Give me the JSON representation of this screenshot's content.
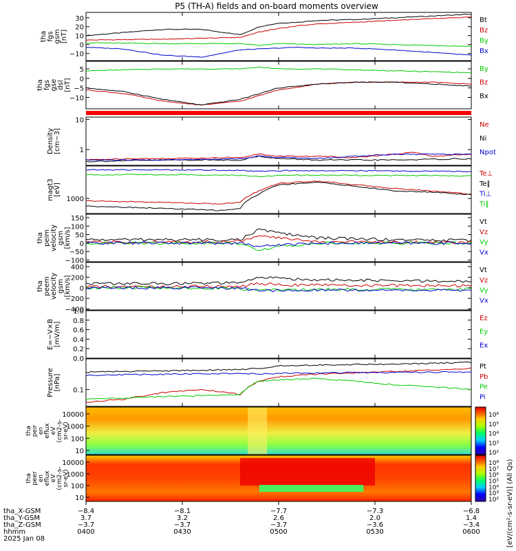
{
  "chart_data": {
    "title": "P5 (TH-A) fields and on-board moments overview",
    "type": "line",
    "panels": [
      {
        "id": "fgs_gsm",
        "ylabel": [
          "tha",
          "fgs",
          "gsm",
          "[nT]"
        ],
        "yticks": [
          {
            "v": 30,
            "label": "30"
          },
          {
            "v": 20,
            "label": "20"
          },
          {
            "v": 10,
            "label": "10"
          },
          {
            "v": 0,
            "label": "0"
          },
          {
            "v": -10,
            "label": "−10"
          }
        ],
        "ylim": [
          -18,
          36
        ],
        "log": false,
        "series": [
          {
            "name": "Bt",
            "color": "#000000",
            "x": [
              0.0,
              0.2,
              0.3,
              0.4,
              0.45,
              0.5,
              0.55,
              0.6,
              0.7,
              0.8,
              0.9,
              1.0
            ],
            "y": [
              10,
              17,
              17,
              11,
              20,
              24,
              25,
              27,
              28,
              30,
              32,
              34
            ]
          },
          {
            "name": "Bz",
            "color": "#cc0000",
            "x": [
              0.0,
              0.2,
              0.4,
              0.45,
              0.5,
              0.55,
              0.6,
              0.7,
              0.8,
              0.9,
              1.0
            ],
            "y": [
              5,
              6,
              8,
              14,
              18,
              21,
              23,
              25,
              27,
              29,
              31
            ]
          },
          {
            "name": "By",
            "color": "#00cc00",
            "x": [
              0.0,
              0.2,
              0.4,
              0.45,
              0.5,
              0.6,
              0.7,
              0.8,
              0.9,
              1.0
            ],
            "y": [
              2,
              1,
              1,
              -1,
              1,
              0,
              1,
              0,
              -1,
              -2
            ]
          },
          {
            "name": "Bx",
            "color": "#0000cc",
            "x": [
              0.0,
              0.1,
              0.2,
              0.3,
              0.4,
              0.45,
              0.5,
              0.55,
              0.6,
              0.7,
              0.8,
              0.9,
              1.0
            ],
            "y": [
              -3,
              -5,
              -12,
              -14,
              -6,
              -5,
              -4,
              -3,
              -4,
              -4,
              -6,
              -9,
              -12
            ]
          }
        ]
      },
      {
        "id": "fgs_dsl",
        "ylabel": [
          "tha",
          "fgs",
          "gse",
          "dsl",
          "[nT]"
        ],
        "yticks": [
          {
            "v": 5,
            "label": "5"
          },
          {
            "v": 0,
            "label": "0"
          },
          {
            "v": -5,
            "label": "−5"
          },
          {
            "v": -10,
            "label": "−10"
          }
        ],
        "ylim": [
          -16,
          9
        ],
        "log": false,
        "series": [
          {
            "name": "By",
            "color": "#00cc00",
            "x": [
              0.0,
              0.2,
              0.4,
              0.45,
              0.5,
              0.6,
              0.8,
              1.0
            ],
            "y": [
              4,
              5,
              5,
              6,
              5,
              5,
              4,
              3
            ]
          },
          {
            "name": "Bz",
            "color": "#cc0000",
            "x": [
              0.0,
              0.1,
              0.2,
              0.3,
              0.4,
              0.45,
              0.5,
              0.6,
              0.7,
              0.8,
              0.9,
              1.0
            ],
            "y": [
              -6,
              -8,
              -12,
              -14,
              -12,
              -9,
              -6,
              -3,
              -2,
              -2,
              -2,
              -3
            ]
          },
          {
            "name": "Bx",
            "color": "#000000",
            "x": [
              0.0,
              0.1,
              0.2,
              0.3,
              0.4,
              0.45,
              0.5,
              0.6,
              0.7,
              0.8,
              0.9,
              1.0
            ],
            "y": [
              -5,
              -7,
              -11,
              -14,
              -11,
              -8,
              -5,
              -3,
              -2,
              -2,
              -3,
              -4
            ]
          }
        ]
      },
      {
        "id": "density",
        "ylabel": [
          "Density",
          "[cm−3]"
        ],
        "yticks": [
          {
            "v": 10,
            "label": "10"
          },
          {
            "v": 1,
            "label": "1"
          }
        ],
        "ylim": [
          0.3,
          12
        ],
        "log": true,
        "series": [
          {
            "name": "Ne",
            "color": "#cc0000",
            "x": [
              0.0,
              0.1,
              0.2,
              0.4,
              0.45,
              0.5,
              0.6,
              0.7,
              0.8,
              0.85,
              0.9,
              1.0
            ],
            "y": [
              0.45,
              0.5,
              0.5,
              0.55,
              0.7,
              0.6,
              0.6,
              0.55,
              0.7,
              0.8,
              0.6,
              0.7
            ]
          },
          {
            "name": "Ni",
            "color": "#000000",
            "x": [
              0.0,
              0.2,
              0.4,
              0.45,
              0.5,
              0.6,
              0.8,
              1.0
            ],
            "y": [
              0.4,
              0.45,
              0.45,
              0.6,
              0.5,
              0.45,
              0.45,
              0.5
            ]
          },
          {
            "name": "Npot",
            "color": "#0000cc",
            "x": [
              0.0,
              0.2,
              0.4,
              0.45,
              0.5,
              0.6,
              0.8,
              0.9,
              1.0
            ],
            "y": [
              0.45,
              0.45,
              0.5,
              0.6,
              0.55,
              0.5,
              0.7,
              0.7,
              0.7
            ]
          }
        ]
      },
      {
        "id": "temperature",
        "ylabel": [
          "magt3",
          "[eV]"
        ],
        "yticks": [
          {
            "v": 1000,
            "label": "1000"
          }
        ],
        "ylim": [
          250,
          20000
        ],
        "log": true,
        "series": [
          {
            "name": "Te⊥",
            "color": "#cc0000",
            "x": [
              0.0,
              0.2,
              0.35,
              0.4,
              0.45,
              0.5,
              0.6,
              0.7,
              0.8,
              0.9,
              1.0
            ],
            "y": [
              800,
              700,
              600,
              700,
              2000,
              4000,
              5000,
              3500,
              2500,
              2000,
              1500
            ]
          },
          {
            "name": "Te∥",
            "color": "#000000",
            "x": [
              0.0,
              0.2,
              0.35,
              0.4,
              0.45,
              0.5,
              0.6,
              0.7,
              0.8,
              0.9,
              1.0
            ],
            "y": [
              500,
              400,
              330,
              400,
              1500,
              3500,
              4500,
              3000,
              2000,
              1800,
              1400
            ]
          },
          {
            "name": "Ti⊥",
            "color": "#0000cc",
            "x": [
              0.0,
              0.2,
              0.4,
              0.45,
              0.5,
              0.7,
              1.0
            ],
            "y": [
              14000,
              14000,
              13500,
              12000,
              13000,
              13000,
              12000
            ]
          },
          {
            "name": "Ti∥",
            "color": "#00cc00",
            "x": [
              0.0,
              0.2,
              0.4,
              0.45,
              0.5,
              0.7,
              1.0
            ],
            "y": [
              9000,
              9000,
              8500,
              7500,
              8500,
              8500,
              8000
            ]
          }
        ]
      },
      {
        "id": "peim_velocity",
        "ylabel": [
          "tha",
          "peim",
          "velocity",
          "gsm",
          "[km/s]"
        ],
        "yticks": [
          {
            "v": 150,
            "label": "150"
          },
          {
            "v": 100,
            "label": "100"
          },
          {
            "v": 50,
            "label": "50"
          },
          {
            "v": 0,
            "label": "0"
          },
          {
            "v": -50,
            "label": "−50"
          },
          {
            "v": -100,
            "label": "−100"
          }
        ],
        "ylim": [
          -110,
          170
        ],
        "log": false,
        "series": [
          {
            "name": "Vt",
            "color": "#000000",
            "x": [
              0.0,
              0.2,
              0.4,
              0.45,
              0.5,
              0.6,
              0.8,
              1.0
            ],
            "y": [
              20,
              20,
              20,
              80,
              60,
              30,
              20,
              15
            ]
          },
          {
            "name": "Vz",
            "color": "#cc0000",
            "x": [
              0.0,
              0.2,
              0.4,
              0.45,
              0.5,
              0.6,
              0.8,
              1.0
            ],
            "y": [
              5,
              5,
              10,
              40,
              30,
              10,
              5,
              5
            ]
          },
          {
            "name": "Vy",
            "color": "#00cc00",
            "x": [
              0.0,
              0.2,
              0.4,
              0.45,
              0.5,
              0.6,
              0.8,
              1.0
            ],
            "y": [
              0,
              0,
              0,
              -40,
              -20,
              0,
              0,
              0
            ]
          },
          {
            "name": "Vx",
            "color": "#0000cc",
            "x": [
              0.0,
              0.2,
              0.4,
              0.45,
              0.5,
              0.6,
              0.8,
              1.0
            ],
            "y": [
              0,
              0,
              0,
              -20,
              -10,
              0,
              0,
              0
            ]
          }
        ]
      },
      {
        "id": "peem_velocity",
        "ylabel": [
          "tha",
          "peem",
          "velocity",
          "gsm",
          "[km/s]"
        ],
        "yticks": [
          {
            "v": 400,
            "label": "400"
          },
          {
            "v": 200,
            "label": "200"
          },
          {
            "v": 0,
            "label": "0"
          },
          {
            "v": -200,
            "label": "−200"
          },
          {
            "v": -400,
            "label": "−400"
          }
        ],
        "ylim": [
          -420,
          480
        ],
        "log": false,
        "series": [
          {
            "name": "Vt",
            "color": "#000000",
            "x": [
              0.0,
              0.2,
              0.4,
              0.45,
              0.5,
              0.6,
              0.8,
              1.0
            ],
            "y": [
              80,
              80,
              90,
              200,
              180,
              150,
              130,
              120
            ]
          },
          {
            "name": "Vz",
            "color": "#cc0000",
            "x": [
              0.0,
              0.2,
              0.4,
              0.45,
              0.5,
              0.6,
              0.8,
              1.0
            ],
            "y": [
              20,
              20,
              30,
              80,
              60,
              50,
              40,
              40
            ]
          },
          {
            "name": "Vy",
            "color": "#00cc00",
            "x": [
              0.0,
              0.2,
              0.4,
              0.45,
              0.5,
              0.6,
              0.8,
              1.0
            ],
            "y": [
              0,
              0,
              -10,
              -60,
              -40,
              -30,
              -30,
              -30
            ]
          },
          {
            "name": "Vx",
            "color": "#0000cc",
            "x": [
              0.0,
              0.2,
              0.4,
              0.45,
              0.5,
              0.6,
              0.8,
              1.0
            ],
            "y": [
              0,
              0,
              -10,
              -60,
              -50,
              -40,
              -50,
              -50
            ]
          }
        ]
      },
      {
        "id": "efield",
        "ylabel": [
          "E=−V×B",
          "[mV/m]"
        ],
        "yticks": [
          {
            "v": 1.0,
            "label": "1.0"
          },
          {
            "v": 0.8,
            "label": "0.8"
          },
          {
            "v": 0.6,
            "label": "0.6"
          },
          {
            "v": 0.4,
            "label": "0.4"
          },
          {
            "v": 0.2,
            "label": "0.2"
          },
          {
            "v": 0.0,
            "label": "0.0"
          }
        ],
        "ylim": [
          0.0,
          1.0
        ],
        "log": false,
        "series": [
          {
            "name": "Ez",
            "color": "#cc0000",
            "x": [],
            "y": []
          },
          {
            "name": "Ey",
            "color": "#00cc00",
            "x": [],
            "y": []
          },
          {
            "name": "Ex",
            "color": "#0000cc",
            "x": [],
            "y": []
          }
        ]
      },
      {
        "id": "pressure",
        "ylabel": [
          "Pressure",
          "[nPa]"
        ],
        "yticks": [
          {
            "v": 0.1,
            "label": "0.1"
          }
        ],
        "ylim": [
          0.03,
          0.9
        ],
        "log": true,
        "series": [
          {
            "name": "Pt",
            "color": "#000000",
            "x": [
              0.0,
              0.2,
              0.4,
              0.45,
              0.5,
              0.6,
              0.7,
              0.8,
              0.9,
              1.0
            ],
            "y": [
              0.35,
              0.38,
              0.42,
              0.45,
              0.55,
              0.58,
              0.6,
              0.62,
              0.65,
              0.7
            ]
          },
          {
            "name": "Pb",
            "color": "#cc0000",
            "x": [
              0.0,
              0.1,
              0.2,
              0.3,
              0.4,
              0.45,
              0.5,
              0.6,
              0.7,
              0.8,
              0.9,
              1.0
            ],
            "y": [
              0.04,
              0.05,
              0.08,
              0.1,
              0.07,
              0.18,
              0.25,
              0.3,
              0.33,
              0.36,
              0.4,
              0.45
            ]
          },
          {
            "name": "Pe",
            "color": "#00cc00",
            "x": [
              0.0,
              0.2,
              0.4,
              0.45,
              0.5,
              0.6,
              0.7,
              0.8,
              0.9,
              1.0
            ],
            "y": [
              0.05,
              0.06,
              0.07,
              0.18,
              0.2,
              0.22,
              0.18,
              0.14,
              0.12,
              0.1
            ]
          },
          {
            "name": "Pi",
            "color": "#0000cc",
            "x": [
              0.0,
              0.2,
              0.4,
              0.45,
              0.5,
              0.6,
              0.8,
              1.0
            ],
            "y": [
              0.28,
              0.3,
              0.32,
              0.3,
              0.32,
              0.33,
              0.34,
              0.35
            ]
          }
        ]
      }
    ],
    "spectrograms": [
      {
        "id": "peir",
        "ylabel": [
          "tha",
          "peir",
          "en",
          "eflux",
          "eV",
          "(cm2-s-",
          "sr-eV)"
        ],
        "yticks": [
          "10000",
          "1000",
          "100",
          "10"
        ],
        "colorbar_ticks": [
          "10⁶",
          "10⁵",
          "10⁴",
          "10³",
          "10²"
        ]
      },
      {
        "id": "peer",
        "ylabel": [
          "tha",
          "peer",
          "en",
          "eflux",
          "eV",
          "(cm2-s-",
          "sr-eV)"
        ],
        "yticks": [
          "10000",
          "1000",
          "100",
          "10"
        ],
        "colorbar_ticks": [
          "10⁸",
          "10⁷",
          "10⁶",
          "10⁵",
          "10⁴",
          "10³",
          "10²"
        ]
      }
    ],
    "colorbar_label": "[eV/(cm²-s-sr-eV)] (All Qs)",
    "xaxis": {
      "rows": [
        "tha_X-GSM",
        "tha_Y-GSM",
        "tha_Z-GSM",
        "hhmm",
        "2025 Jan 08"
      ],
      "ticks": [
        {
          "frac": 0.0,
          "vals": [
            "−8.4",
            "3.7",
            "−3.7",
            "0400"
          ]
        },
        {
          "frac": 0.25,
          "vals": [
            "−8.1",
            "3.2",
            "−3.7",
            "0430"
          ]
        },
        {
          "frac": 0.5,
          "vals": [
            "−7.7",
            "2.6",
            "−3.7",
            "0500"
          ]
        },
        {
          "frac": 0.75,
          "vals": [
            "−7.3",
            "2.0",
            "−3.6",
            "0530"
          ]
        },
        {
          "frac": 1.0,
          "vals": [
            "−6.8",
            "1.4",
            "−3.4",
            "0600"
          ]
        }
      ]
    }
  }
}
